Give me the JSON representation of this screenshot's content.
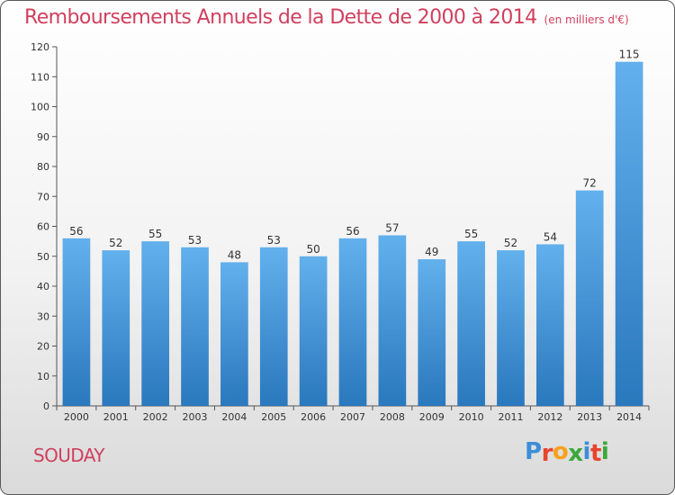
{
  "header": {
    "title": "Remboursements Annuels de la Dette de 2000 à 2014",
    "unit": "(en milliers d'€)"
  },
  "footer": {
    "commune": "SOUDAY",
    "logo_letters": [
      "P",
      "r",
      "o",
      "x",
      "i",
      "t",
      "i"
    ],
    "logo_colors": [
      "#3b8ed8",
      "#e8442e",
      "#f7a11a",
      "#3aa83a",
      "#3b8ed8",
      "#e8442e",
      "#3aa83a"
    ]
  },
  "colors": {
    "bar_light": "#62b0ec",
    "bar_dark": "#2a78bd",
    "title": "#d0405e",
    "axis": "#555555"
  },
  "chart_data": {
    "type": "bar",
    "title": "Remboursements Annuels de la Dette de 2000 à 2014",
    "subtitle": "(en milliers d'€)",
    "xlabel": "",
    "ylabel": "",
    "categories": [
      "2000",
      "2001",
      "2002",
      "2003",
      "2004",
      "2005",
      "2006",
      "2007",
      "2008",
      "2009",
      "2010",
      "2011",
      "2012",
      "2013",
      "2014"
    ],
    "values": [
      56,
      52,
      55,
      53,
      48,
      53,
      50,
      56,
      57,
      49,
      55,
      52,
      54,
      72,
      115
    ],
    "ylim": [
      0,
      120
    ],
    "yticks": [
      0,
      10,
      20,
      30,
      40,
      50,
      60,
      70,
      80,
      90,
      100,
      110,
      120
    ],
    "grid": false,
    "legend": "none"
  }
}
